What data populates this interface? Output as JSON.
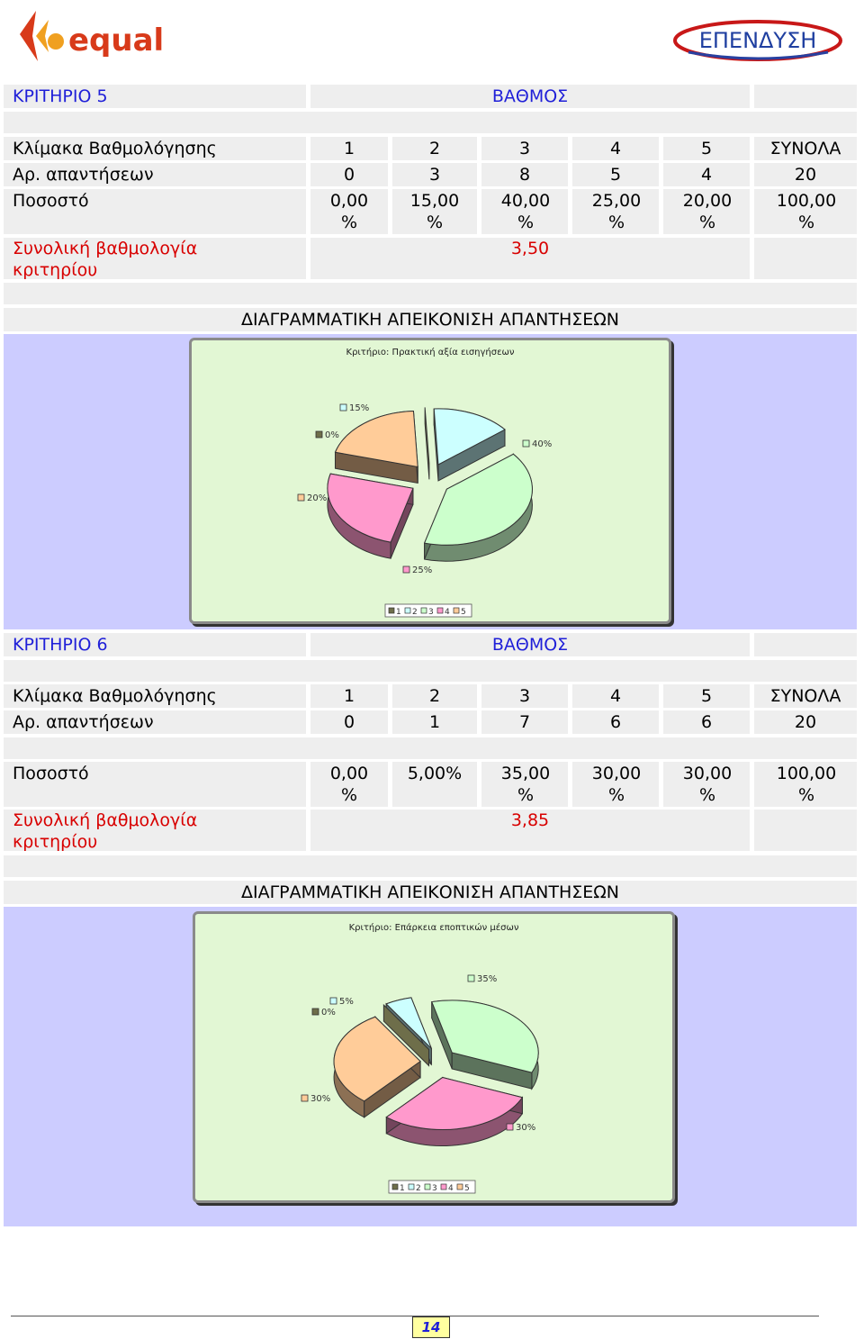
{
  "header": {
    "left_logo_text": "equal",
    "right_logo_text": "ΕΠΕΝΔΥΣΗ"
  },
  "criteria": [
    {
      "name": "ΚΡΙΤΗΡΙΟ 5",
      "score_header": "ΒΑΘΜΟΣ",
      "scale_label": "Κλίμακα Βαθμολόγησης",
      "scale": [
        "1",
        "2",
        "3",
        "4",
        "5"
      ],
      "totals_label": "ΣΥΝΟΛΑ",
      "answers_label": "Αρ. απαντήσεων",
      "answers": [
        "0",
        "3",
        "8",
        "5",
        "4"
      ],
      "answers_total": "20",
      "percent_label": "Ποσοστό",
      "percents": [
        "0,00 %",
        "15,00 %",
        "40,00 %",
        "25,00 %",
        "20,00 %"
      ],
      "percent_total": "100,00 %",
      "overall_label": "Συνολική βαθμολογία κριτηρίου",
      "overall_value": "3,50",
      "diagram_title": "ΔΙΑΓΡΑΜΜΑΤΙΚΗ ΑΠΕΙΚΟΝΙΣΗ ΑΠΑΝΤΗΣΕΩΝ"
    },
    {
      "name": "ΚΡΙΤΗΡΙΟ 6",
      "score_header": "ΒΑΘΜΟΣ",
      "scale_label": "Κλίμακα Βαθμολόγησης",
      "scale": [
        "1",
        "2",
        "3",
        "4",
        "5"
      ],
      "totals_label": "ΣΥΝΟΛΑ",
      "answers_label": "Αρ. απαντήσεων",
      "answers": [
        "0",
        "1",
        "7",
        "6",
        "6"
      ],
      "answers_total": "20",
      "percent_label": "Ποσοστό",
      "percents": [
        "0,00 %",
        "5,00%",
        "35,00 %",
        "30,00 %",
        "30,00 %"
      ],
      "percent_total": "100,00 %",
      "overall_label": "Συνολική βαθμολογία κριτηρίου",
      "overall_value": "3,85",
      "diagram_title": "ΔΙΑΓΡΑΜΜΑΤΙΚΗ ΑΠΕΙΚΟΝΙΣΗ ΑΠΑΝΤΗΣΕΩΝ"
    }
  ],
  "chart_data": [
    {
      "type": "pie",
      "title": "Κριτήριο: Πρακτική αξία εισηγήσεων",
      "categories": [
        "1",
        "2",
        "3",
        "4",
        "5"
      ],
      "values": [
        0,
        15,
        40,
        25,
        20
      ],
      "labels": [
        "0%",
        "15%",
        "40%",
        "25%",
        "20%"
      ],
      "colors": [
        "#6e6e4a",
        "#ccffff",
        "#ccffcc",
        "#ff99cc",
        "#ffcc99"
      ],
      "legend": "bottom"
    },
    {
      "type": "pie",
      "title": "Κριτήριο: Επάρκεια εποπτικών μέσων",
      "categories": [
        "1",
        "2",
        "3",
        "4",
        "5"
      ],
      "values": [
        0,
        5,
        35,
        30,
        30
      ],
      "labels": [
        "0%",
        "5%",
        "35%",
        "30%",
        "30%"
      ],
      "colors": [
        "#6e6e4a",
        "#ccffff",
        "#ccffcc",
        "#ff99cc",
        "#ffcc99"
      ],
      "legend": "bottom"
    }
  ],
  "footer": {
    "page_number": "14"
  }
}
